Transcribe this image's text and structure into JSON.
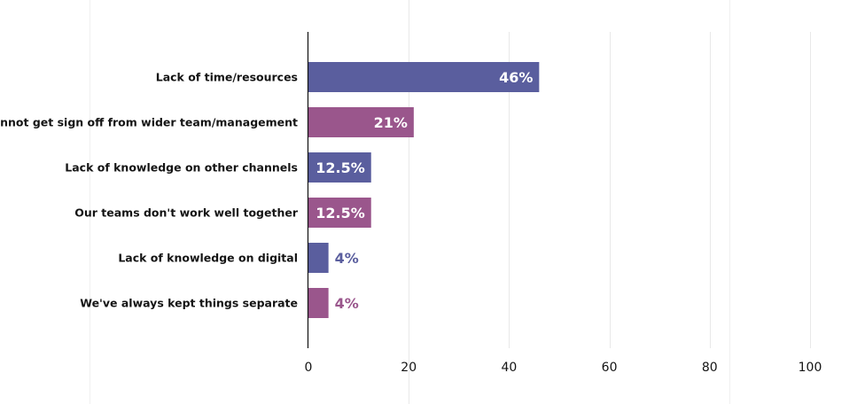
{
  "chart_data": {
    "type": "bar",
    "orientation": "horizontal",
    "title": "",
    "xlabel": "",
    "ylabel": "",
    "xlim": [
      0,
      100
    ],
    "ticks": [
      0,
      20,
      40,
      60,
      80,
      100
    ],
    "grid": true,
    "categories": [
      "Lack of time/resources",
      "Cannot get sign off from wider team/management",
      "Lack of knowledge on other channels",
      "Our teams don't work well together",
      "Lack of knowledge on digital",
      "We've always kept things separate"
    ],
    "values": [
      46,
      21,
      12.5,
      12.5,
      4,
      4
    ],
    "value_labels": [
      "46%",
      "21%",
      "12.5%",
      "12.5%",
      "4%",
      "4%"
    ],
    "colors": [
      "#5a5e9e",
      "#9a568c",
      "#5a5e9e",
      "#9a568c",
      "#5a5e9e",
      "#9a568c"
    ]
  }
}
